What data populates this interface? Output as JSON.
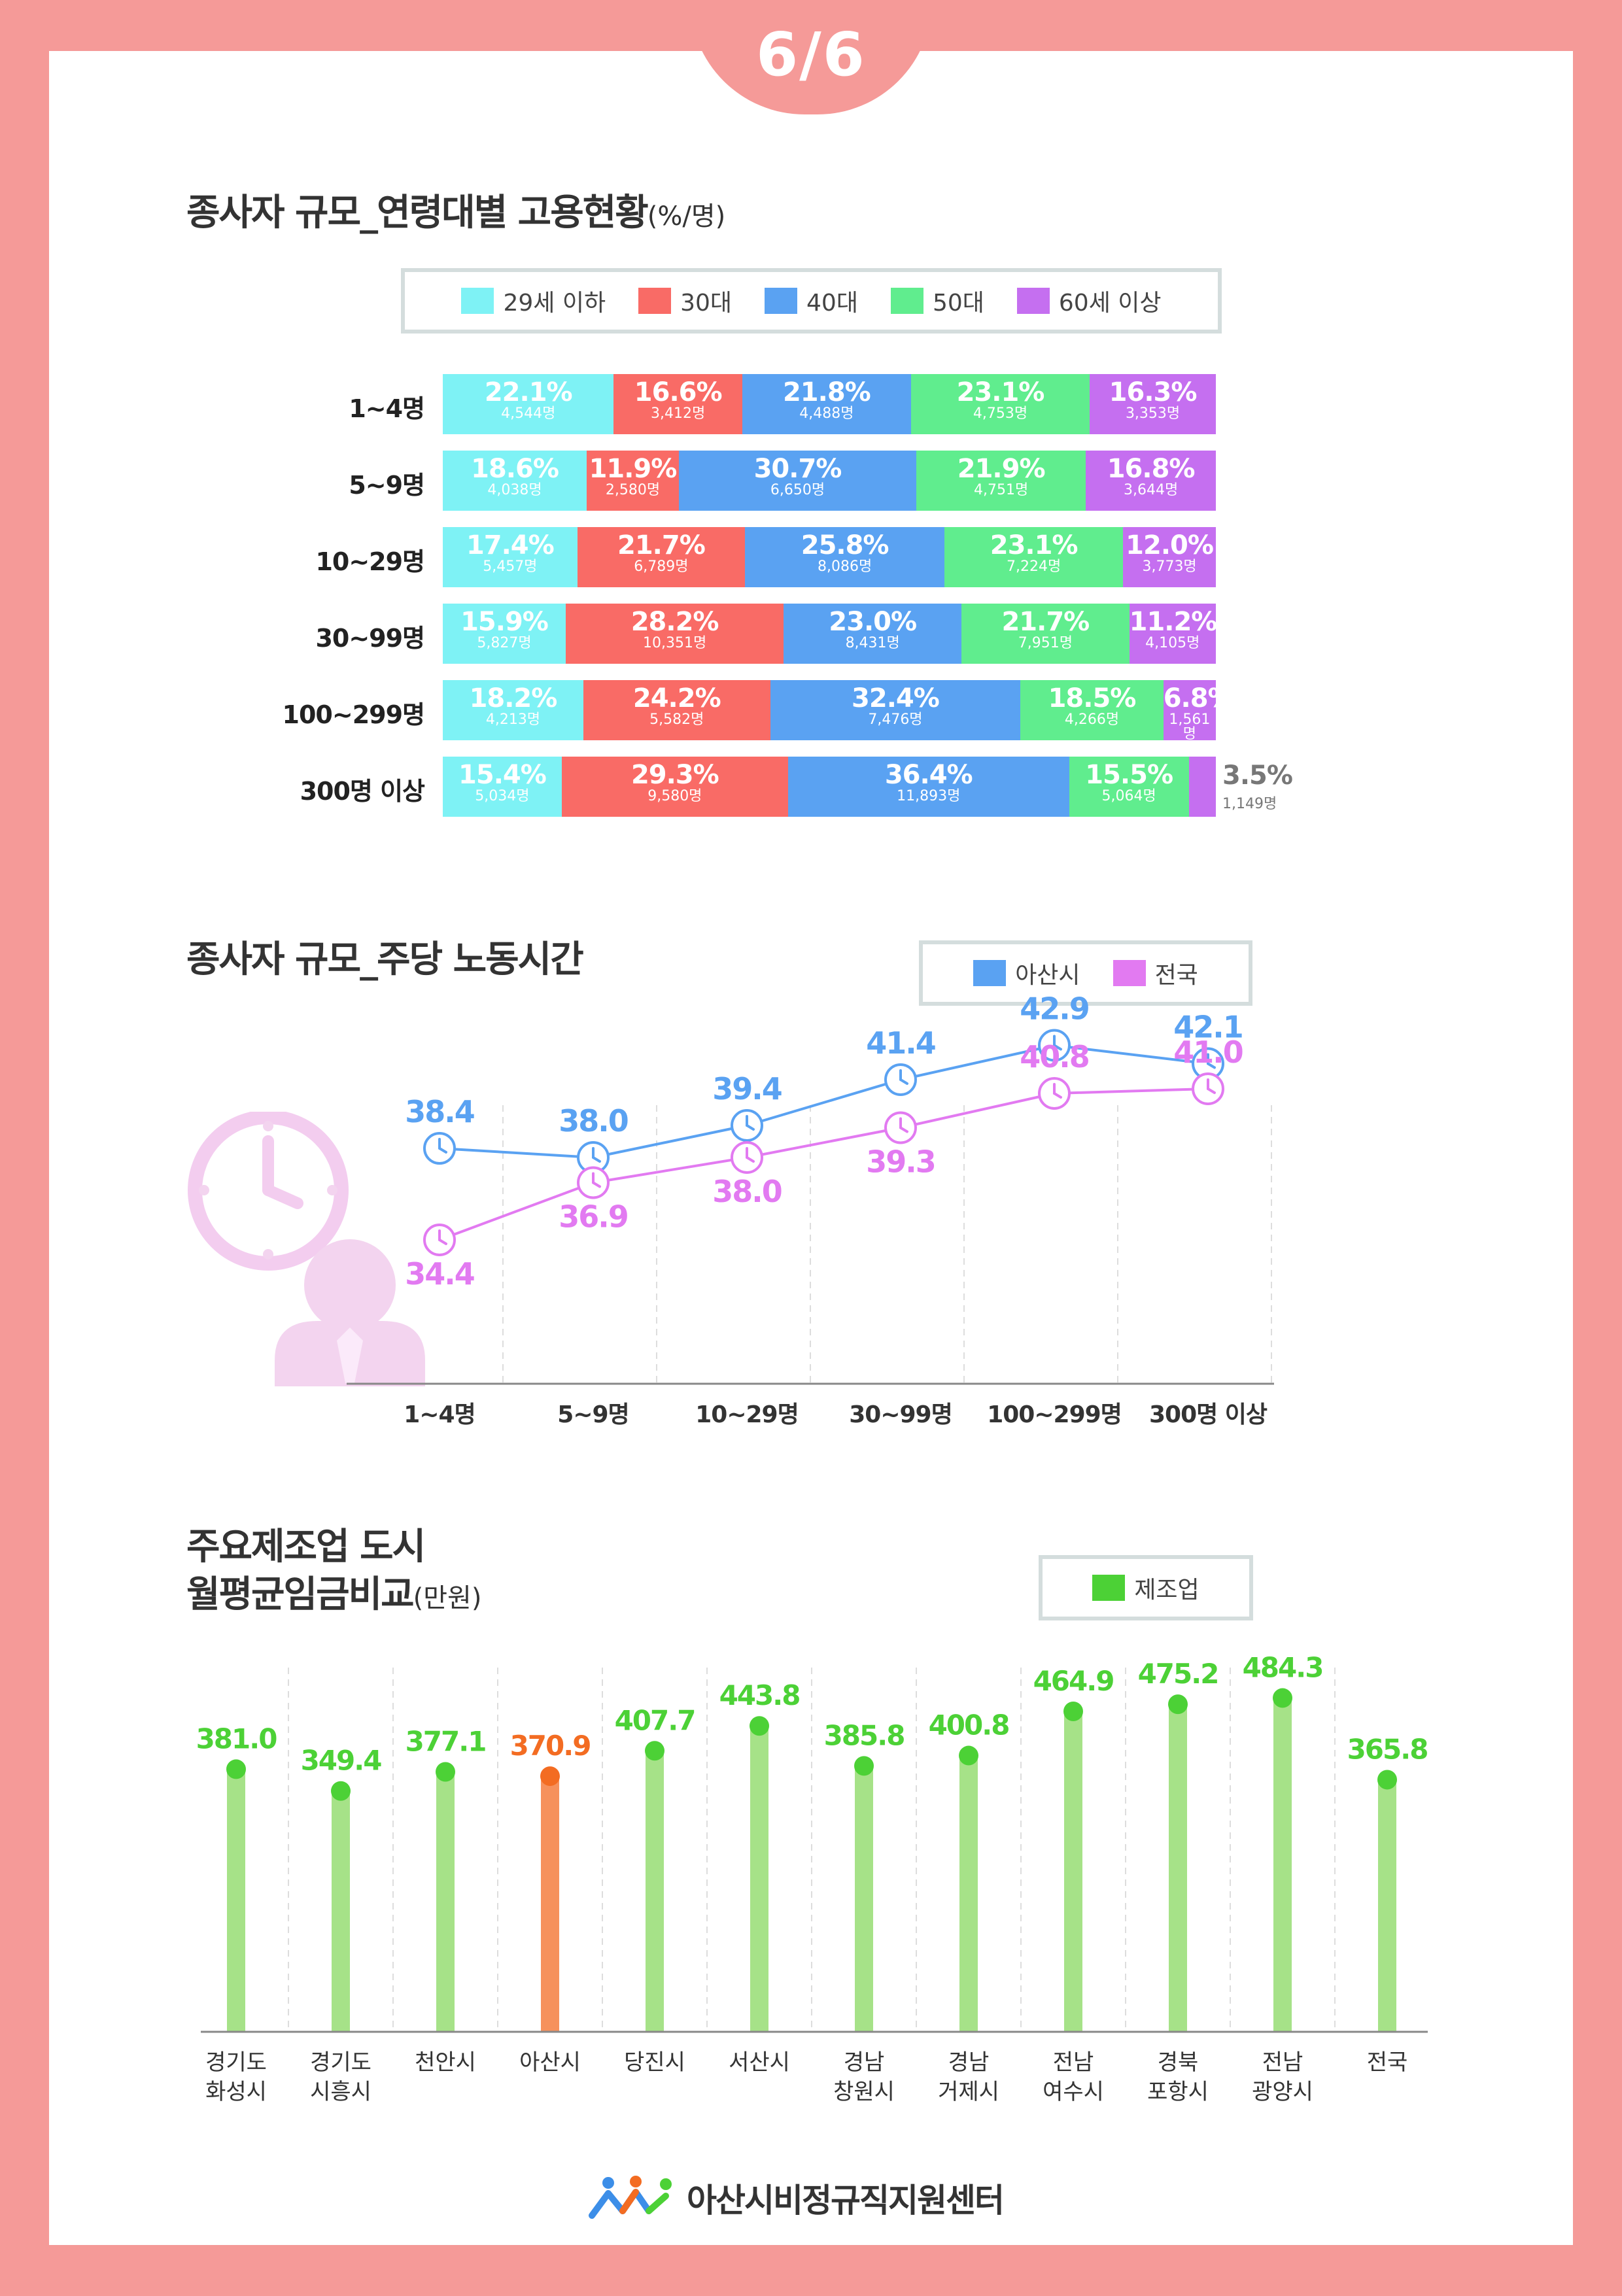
{
  "page": {
    "number": "6/6"
  },
  "section1": {
    "title": "종사자 규모_연령대별 고용현황",
    "unit": "(%/명)"
  },
  "section2": {
    "title": "종사자 규모_주당 노동시간"
  },
  "section3": {
    "title_line1": "주요제조업 도시",
    "title_line2": "월평균임금비교",
    "unit": "(만원)"
  },
  "footer": {
    "org_name": "아산시비정규직지원센터"
  },
  "colors": {
    "age_29": "#7ef2f5",
    "age_30": "#f96b66",
    "age_40": "#5aa2f2",
    "age_50": "#60ed8e",
    "age_60": "#c56ff0",
    "asan": "#5aa2f2",
    "national": "#e27af1",
    "manufacturing": "#4cd136",
    "asan_highlight": "#f36c22",
    "bar_light": "#a6e288",
    "bar_highlight": "#f6915c"
  },
  "chart_data": [
    {
      "type": "bar",
      "orientation": "horizontal",
      "stacked": "percent",
      "title": "종사자 규모_연령대별 고용현황",
      "categories": [
        "1~4명",
        "5~9명",
        "10~29명",
        "30~99명",
        "100~299명",
        "300명 이상"
      ],
      "legend": [
        "29세 이하",
        "30대",
        "40대",
        "50대",
        "60세 이상"
      ],
      "series": [
        {
          "name": "29세 이하",
          "values": [
            22.1,
            18.6,
            17.4,
            15.9,
            18.2,
            15.4
          ],
          "counts": [
            "4,544명",
            "4,038명",
            "5,457명",
            "5,827명",
            "4,213명",
            "5,034명"
          ]
        },
        {
          "name": "30대",
          "values": [
            16.6,
            11.9,
            21.7,
            28.2,
            24.2,
            29.3
          ],
          "counts": [
            "3,412명",
            "2,580명",
            "6,789명",
            "10,351명",
            "5,582명",
            "9,580명"
          ]
        },
        {
          "name": "40대",
          "values": [
            21.8,
            30.7,
            25.8,
            23.0,
            32.4,
            36.4
          ],
          "counts": [
            "4,488명",
            "6,650명",
            "8,086명",
            "8,431명",
            "7,476명",
            "11,893명"
          ]
        },
        {
          "name": "50대",
          "values": [
            23.1,
            21.9,
            23.1,
            21.7,
            18.5,
            15.5
          ],
          "counts": [
            "4,753명",
            "4,751명",
            "7,224명",
            "7,951명",
            "4,266명",
            "5,064명"
          ]
        },
        {
          "name": "60세 이상",
          "values": [
            16.3,
            16.8,
            12.0,
            11.2,
            6.8,
            3.5
          ],
          "counts": [
            "3,353명",
            "3,644명",
            "3,773명",
            "4,105명",
            "1,561명",
            "1,149명"
          ]
        }
      ]
    },
    {
      "type": "line",
      "title": "종사자 규모_주당 노동시간",
      "categories": [
        "1~4명",
        "5~9명",
        "10~29명",
        "30~99명",
        "100~299명",
        "300명 이상"
      ],
      "legend": [
        "아산시",
        "전국"
      ],
      "series": [
        {
          "name": "아산시",
          "values": [
            38.4,
            38.0,
            39.4,
            41.4,
            42.9,
            42.1
          ]
        },
        {
          "name": "전국",
          "values": [
            34.4,
            36.9,
            38.0,
            39.3,
            40.8,
            41.0
          ]
        }
      ],
      "ylim": [
        30,
        46
      ]
    },
    {
      "type": "bar",
      "style": "lollipop",
      "title": "주요제조업 도시 월평균임금비교",
      "unit": "(만원)",
      "legend": [
        "제조업"
      ],
      "categories": [
        [
          "경기도",
          "화성시"
        ],
        [
          "경기도",
          "시흥시"
        ],
        [
          "천안시"
        ],
        [
          "아산시"
        ],
        [
          "당진시"
        ],
        [
          "서산시"
        ],
        [
          "경남",
          "창원시"
        ],
        [
          "경남",
          "거제시"
        ],
        [
          "전남",
          "여수시"
        ],
        [
          "경북",
          "포항시"
        ],
        [
          "전남",
          "광양시"
        ],
        [
          "전국"
        ]
      ],
      "values": [
        381.0,
        349.4,
        377.1,
        370.9,
        407.7,
        443.8,
        385.8,
        400.8,
        464.9,
        475.2,
        484.3,
        365.8
      ],
      "highlight": "아산시",
      "ylim": [
        0,
        500
      ]
    }
  ]
}
